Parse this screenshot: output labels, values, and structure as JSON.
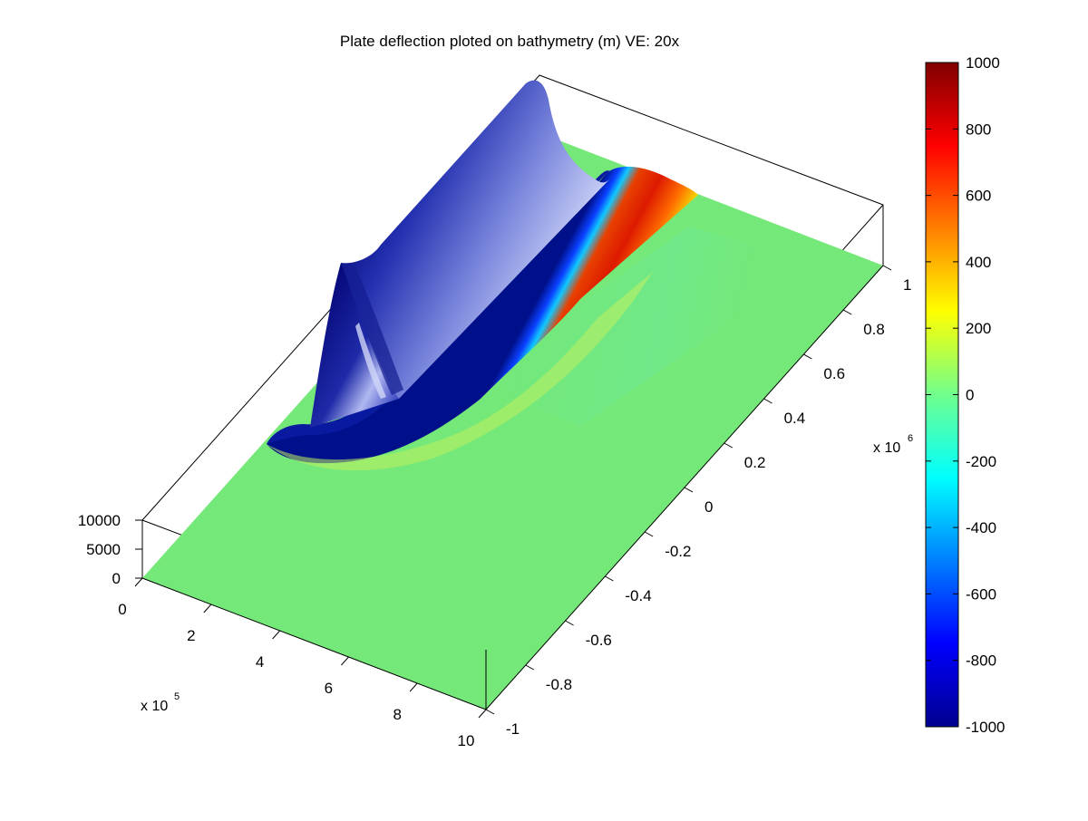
{
  "chart_data": {
    "type": "surface3d",
    "title": "Plate deflection ploted on bathymetry (m) VE: 20x",
    "x_axis": {
      "ticks": [
        "0",
        "2",
        "4",
        "6",
        "8",
        "10"
      ],
      "multiplier": "x 10",
      "exponent": "5",
      "range": [
        0,
        1000000
      ]
    },
    "y_axis": {
      "ticks": [
        "-1",
        "-0.8",
        "-0.6",
        "-0.4",
        "-0.2",
        "0",
        "0.2",
        "0.4",
        "0.6",
        "0.8",
        "1"
      ],
      "multiplier": "x 10",
      "exponent": "6",
      "range": [
        -1000000,
        1000000
      ]
    },
    "z_axis": {
      "ticks": [
        "0",
        "5000",
        "10000"
      ],
      "range": [
        0,
        10000
      ]
    },
    "colorbar": {
      "colormap": "jet",
      "range": [
        -1000,
        1000
      ],
      "ticks": [
        "1000",
        "800",
        "600",
        "400",
        "200",
        "0",
        "-200",
        "-400",
        "-600",
        "-800",
        "-1000"
      ]
    },
    "surface": {
      "flat_level_m": 0,
      "ridge_peak_m": 10000,
      "ridge_x_m": 300000,
      "forebulge_color_value_m": 900,
      "trough_color_value_m": -1000
    },
    "colors": {
      "flat_surface": "#74e878",
      "ridge_dark": "#0a0f80",
      "ridge_light": "#c8cff5",
      "bulge_red": "#dd1a00",
      "bulge_yellow": "#f5f000",
      "box_edges": "#000000"
    }
  }
}
